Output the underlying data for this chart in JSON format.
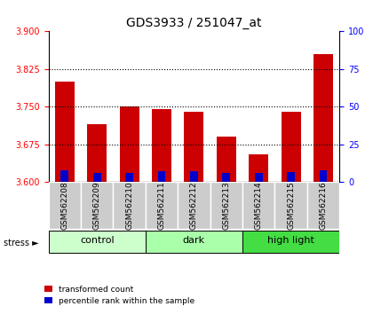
{
  "title": "GDS3933 / 251047_at",
  "samples": [
    "GSM562208",
    "GSM562209",
    "GSM562210",
    "GSM562211",
    "GSM562212",
    "GSM562213",
    "GSM562214",
    "GSM562215",
    "GSM562216"
  ],
  "red_values": [
    3.8,
    3.715,
    3.75,
    3.745,
    3.74,
    3.69,
    3.655,
    3.74,
    3.855
  ],
  "blue_values": [
    3.623,
    3.618,
    3.619,
    3.621,
    3.621,
    3.619,
    3.618,
    3.62,
    3.623
  ],
  "ylim_left": [
    3.6,
    3.9
  ],
  "ylim_right": [
    0,
    100
  ],
  "yticks_left": [
    3.6,
    3.675,
    3.75,
    3.825,
    3.9
  ],
  "yticks_right": [
    0,
    25,
    50,
    75,
    100
  ],
  "gridlines": [
    3.675,
    3.75,
    3.825
  ],
  "groups": [
    {
      "label": "control",
      "indices": [
        0,
        1,
        2
      ],
      "color": "#ccffcc"
    },
    {
      "label": "dark",
      "indices": [
        3,
        4,
        5
      ],
      "color": "#aaffaa"
    },
    {
      "label": "high light",
      "indices": [
        6,
        7,
        8
      ],
      "color": "#44dd44"
    }
  ],
  "bar_width": 0.6,
  "bar_color_red": "#cc0000",
  "bar_color_blue": "#0000cc",
  "bar_bottom": 3.6,
  "stress_label": "stress",
  "legend_red": "transformed count",
  "legend_blue": "percentile rank within the sample"
}
